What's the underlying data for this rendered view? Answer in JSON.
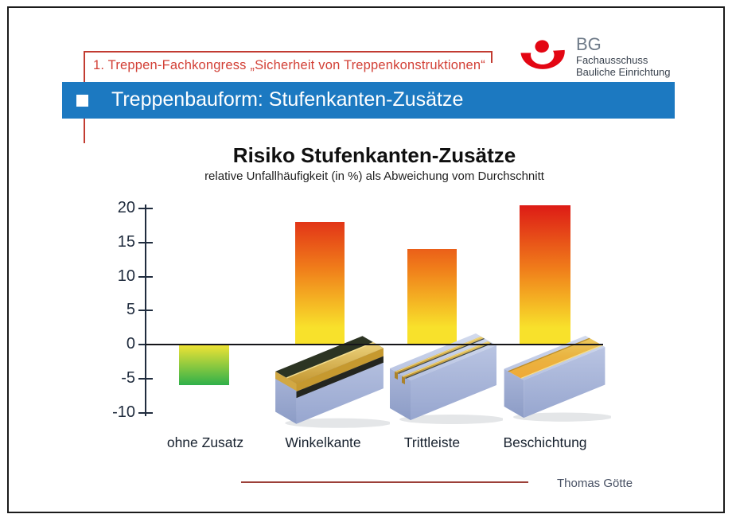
{
  "slide": {
    "background": "#ffffff",
    "frame_color": "#1b1b1b"
  },
  "header": {
    "congress_title": "1. Treppen-Fachkongress „Sicherheit von Treppenkonstruktionen“",
    "text_color": "#d23f35",
    "rule_color": "#c23b31"
  },
  "logo": {
    "brand": "BG",
    "subtitle_line1": "Fachausschuss",
    "subtitle_line2": "Bauliche Einrichtung",
    "mark_color": "#e30613",
    "brand_color": "#6e7a88",
    "subtitle_color": "#39424e"
  },
  "title_bar": {
    "label": "Treppenbauform: Stufenkanten-Zusätze",
    "background": "#1c79c1",
    "text_color": "#ffffff"
  },
  "chart_data": {
    "type": "bar",
    "title": "Risiko Stufenkanten-Zusätze",
    "subtitle": "relative Unfallhäufigkeit (in %) als Abweichung vom Durchschnitt",
    "categories": [
      "ohne Zusatz",
      "Winkelkante",
      "Trittleiste",
      "Beschichtung"
    ],
    "values": [
      -6,
      18,
      14,
      20.5
    ],
    "unit": "%",
    "ylim": [
      -10,
      20
    ],
    "yticks": [
      20,
      15,
      10,
      5,
      0,
      -5,
      -10
    ],
    "baseline": 0,
    "grid": false,
    "legend": null,
    "axis_color": "#202c3e",
    "zero_line_color": "#15151a",
    "positive_gradient": [
      "#dd1b16",
      "#f07c1a",
      "#f8e12b"
    ],
    "negative_gradient": [
      "#f2e434",
      "#2fb04a"
    ],
    "category_illustrations": [
      "none",
      "angle-edge-block",
      "tread-strips-block",
      "coating-block"
    ]
  },
  "footer": {
    "author": "Thomas Götte",
    "rule_color": "#9c4038",
    "text_color": "#475063"
  }
}
